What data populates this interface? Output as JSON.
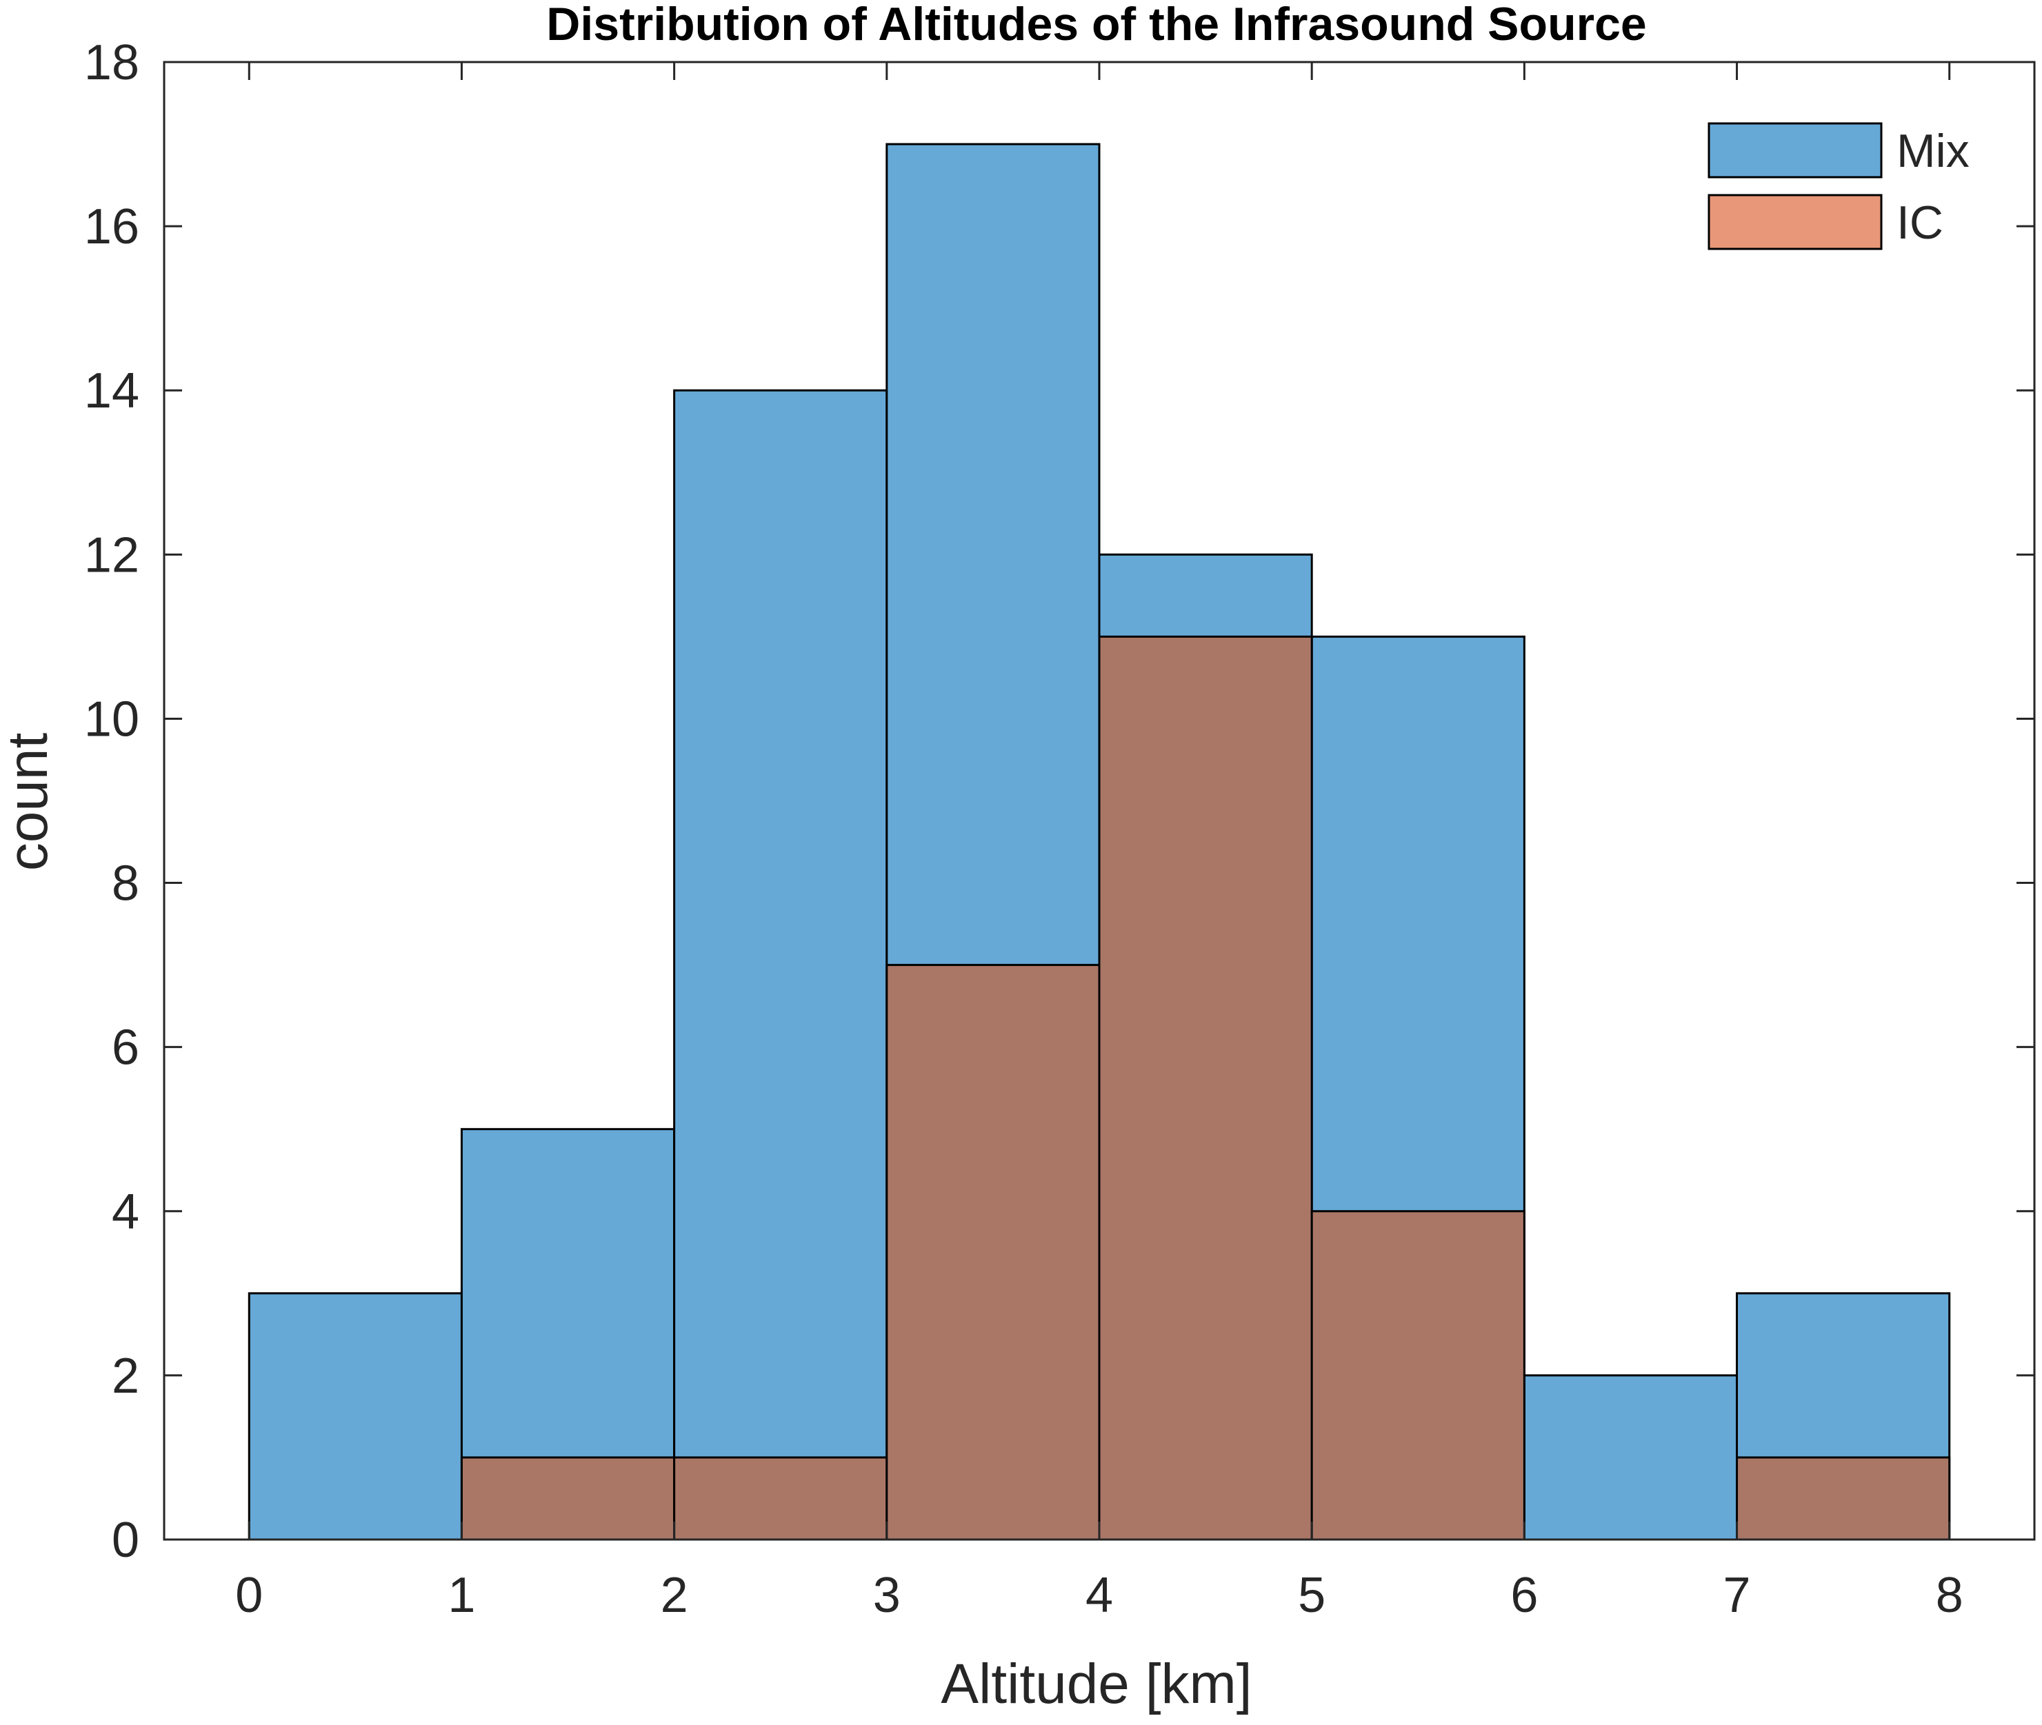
{
  "chart_data": {
    "type": "histogram",
    "title": "Distribution of Altitudes of the Infrasound Source",
    "xlabel": "Altitude [km]",
    "ylabel": "count",
    "xlim": [
      -0.4,
      8.4
    ],
    "ylim": [
      0,
      18
    ],
    "xticks": [
      0,
      1,
      2,
      3,
      4,
      5,
      6,
      7,
      8
    ],
    "yticks": [
      0,
      2,
      4,
      6,
      8,
      10,
      12,
      14,
      16,
      18
    ],
    "bin_edges": [
      0,
      1,
      2,
      3,
      4,
      5,
      6,
      7,
      8
    ],
    "grid": false,
    "legend_position": "top-right",
    "series": [
      {
        "name": "Mix",
        "color": "#66a9d7",
        "counts": [
          3,
          5,
          14,
          17,
          12,
          11,
          2,
          3
        ]
      },
      {
        "name": "IC",
        "color": "#aa7767",
        "legend_color": "#e89778",
        "counts": [
          0,
          1,
          1,
          7,
          11,
          4,
          0,
          1
        ]
      }
    ]
  }
}
